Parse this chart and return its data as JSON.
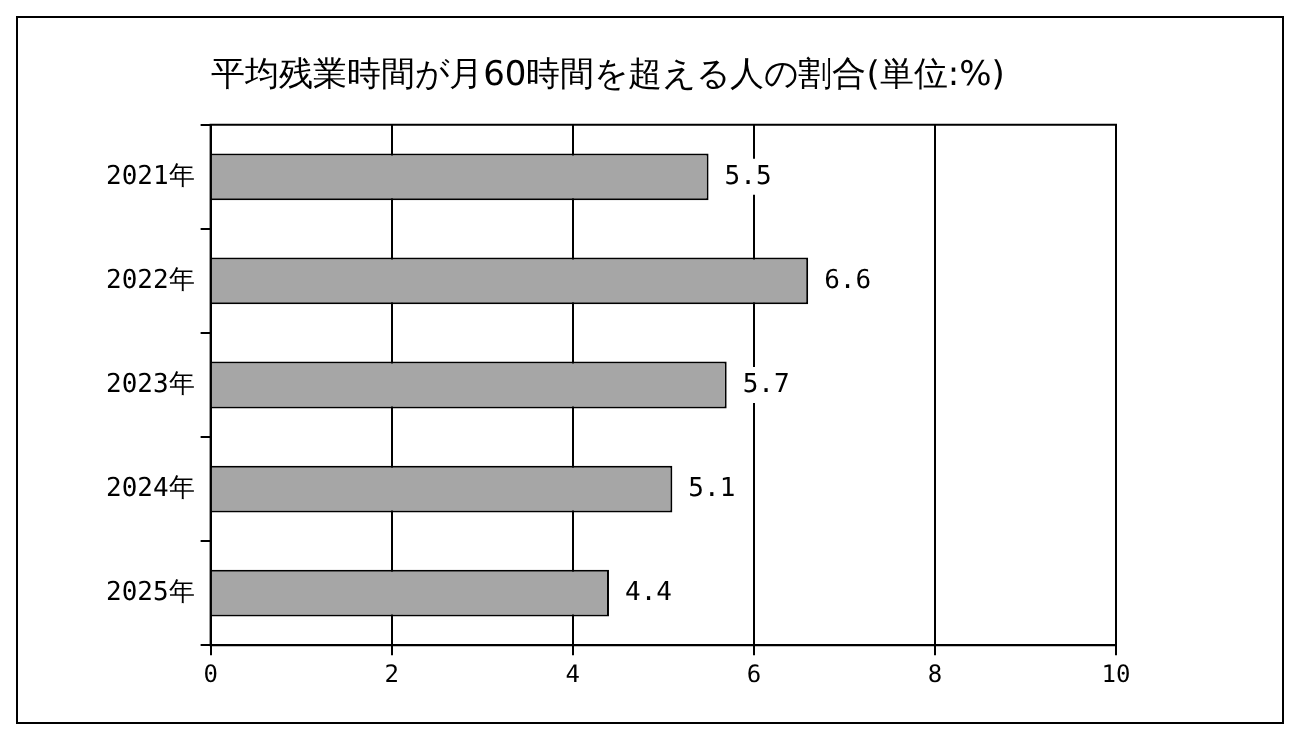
{
  "chart_data": {
    "type": "bar",
    "orientation": "horizontal",
    "title": "平均残業時間が月60時間を超える人の割合(単位:%)",
    "categories": [
      "2021年",
      "2022年",
      "2023年",
      "2024年",
      "2025年"
    ],
    "values": [
      5.5,
      6.6,
      5.7,
      5.1,
      4.4
    ],
    "color": "#a6a6a6",
    "xlim": [
      0,
      10
    ],
    "xticks": [
      0,
      2,
      4,
      6,
      8,
      10
    ],
    "grid": "x",
    "data_labels": true,
    "legend": false
  }
}
